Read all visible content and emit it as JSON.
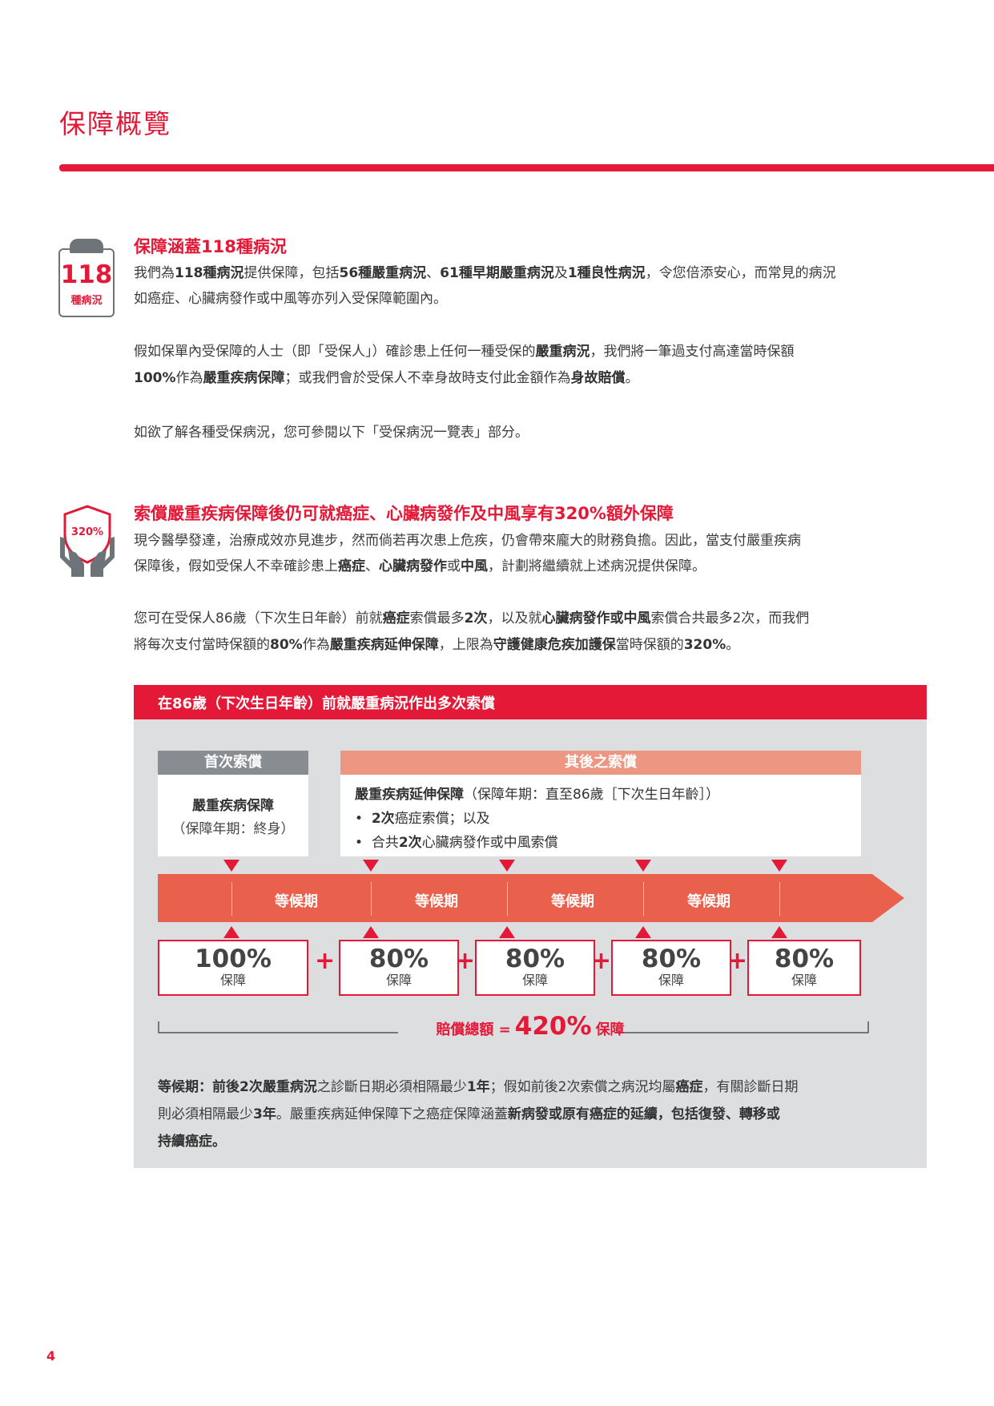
{
  "page": {
    "title": "保障概覽",
    "page_number": "4"
  },
  "section1": {
    "icon": {
      "name": "clipboard-icon",
      "number": "118",
      "label": "種病況"
    },
    "heading": "保障涵蓋118種病況",
    "p1_l1": [
      "我們為",
      "118種病況",
      "提供保障，包括",
      "56種嚴重病況",
      "、",
      "61種早期嚴重病況",
      "及",
      "1種良性病況",
      "，令您倍添安心，而常見的病況"
    ],
    "p1_l2": "如癌症、心臟病發作或中風等亦列入受保障範圍內。",
    "p2_l1": [
      "假如保單內受保障的人士（即「受保人」）確診患上任何一種受保的",
      "嚴重病況",
      "，我們將一筆過支付高達當時保額"
    ],
    "p2_l2": [
      "100%",
      "作為",
      "嚴重疾病保障",
      "；或我們會於受保人不幸身故時支付此金額作為",
      "身故賠償",
      "。"
    ],
    "p3": "如欲了解各種受保病況，您可參閱以下「受保病況一覽表」部分。"
  },
  "section2": {
    "icon": {
      "name": "shield-hands-icon",
      "label": "320%"
    },
    "heading": "索償嚴重疾病保障後仍可就癌症、心臟病發作及中風享有320%額外保障",
    "p1_l1": "現今醫學發達，治療成效亦見進步，然而倘若再次患上危疾，仍會帶來龐大的財務負擔。因此，當支付嚴重疾病",
    "p1_l2": [
      "保障後，假如受保人不幸確診患上",
      "癌症",
      "、",
      "心臟病發作",
      "或",
      "中風",
      "，計劃將繼續就上述病況提供保障。"
    ],
    "p2_l1": [
      "您可在受保人86歲（下次生日年齡）前就",
      "癌症",
      "索償最多",
      "2次",
      "，以及就",
      "心臟病發作或中風",
      "索償合共最多2次，而我們"
    ],
    "p2_l2": [
      "將每次支付當時保額的",
      "80%",
      "作為",
      "嚴重疾病延伸保障",
      "，上限為",
      "守護健康危疾加護保",
      "當時保額的",
      "320%",
      "。"
    ]
  },
  "diagram": {
    "header": "在86歲（下次生日年齡）前就嚴重病況作出多次索償",
    "first": {
      "head": "首次索償",
      "line1": "嚴重疾病保障",
      "line2": "（保障年期：終身）"
    },
    "later": {
      "head": "其後之索償",
      "line1_bold": "嚴重疾病延伸保障",
      "line1_rest": "（保障年期：直至86歲［下次生日年齡］）",
      "item1_bold": "2次",
      "item1_rest": "癌症索償；以及",
      "item2_pre": "合共",
      "item2_bold": "2次",
      "item2_rest": "心臟病發作或中風索償"
    },
    "waiting_labels": [
      "等候期",
      "等候期",
      "等候期",
      "等候期"
    ],
    "payouts": [
      {
        "pct": "100%",
        "cap": "保障"
      },
      {
        "pct": "80%",
        "cap": "保障"
      },
      {
        "pct": "80%",
        "cap": "保障"
      },
      {
        "pct": "80%",
        "cap": "保障"
      },
      {
        "pct": "80%",
        "cap": "保障"
      }
    ],
    "plus": "+",
    "total_lead": "賠償總額 =",
    "total_value": "420%",
    "total_tail": "保障",
    "note_l1": [
      "等候期：前後2次",
      "嚴重病況",
      "之診斷日期必須相隔最少",
      "1年",
      "；假如前後2次索償之病況均屬",
      "癌症",
      "，有關診斷日期"
    ],
    "note_l2": [
      "則必須相隔最少",
      "3年",
      "。嚴重疾病延伸保障下之癌症保障涵蓋",
      "新病發或原有癌症的延續，包括復發、轉移或"
    ],
    "note_l3": "持續癌症。"
  },
  "colors": {
    "brand_red": "#e31937",
    "gray_panel": "#dcdee0",
    "salmon": "#ed9681",
    "arrow": "#e9604c",
    "gray_head": "#888d91"
  }
}
